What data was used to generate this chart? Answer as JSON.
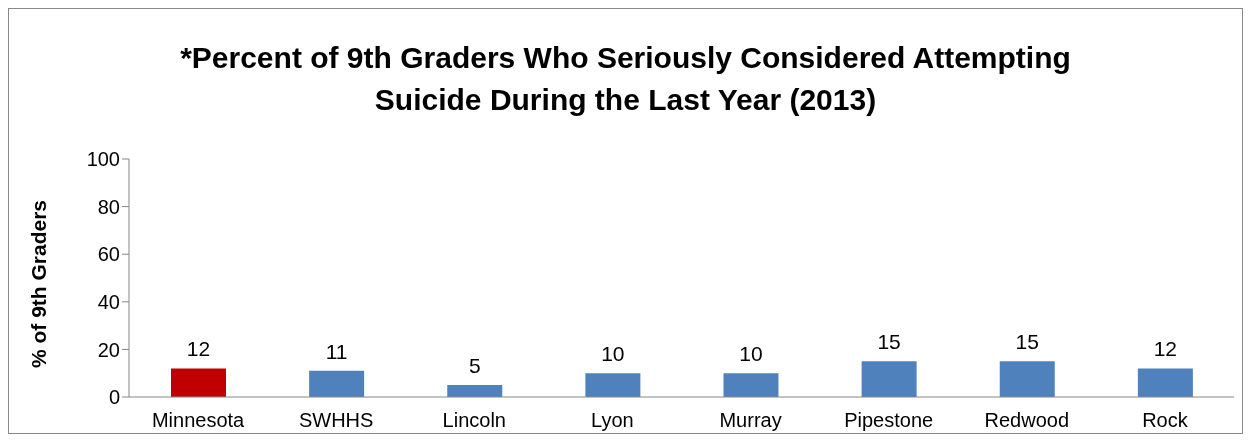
{
  "chart_data": {
    "type": "bar",
    "title": "*Percent of 9th Graders Who Seriously Considered Attempting Suicide During the Last Year (2013)",
    "ylabel": "% of 9th Graders",
    "categories": [
      "Minnesota",
      "SWHHS",
      "Lincoln",
      "Lyon",
      "Murray",
      "Pipestone",
      "Redwood",
      "Rock"
    ],
    "values": [
      12,
      11,
      5,
      10,
      10,
      15,
      15,
      12
    ],
    "colors": [
      "#c00000",
      "#4f81bd",
      "#4f81bd",
      "#4f81bd",
      "#4f81bd",
      "#4f81bd",
      "#4f81bd",
      "#4f81bd"
    ],
    "ylim": [
      0,
      100
    ],
    "yticks": [
      0,
      20,
      40,
      60,
      80,
      100
    ],
    "grid": false,
    "legend": false,
    "data_labels": true
  }
}
